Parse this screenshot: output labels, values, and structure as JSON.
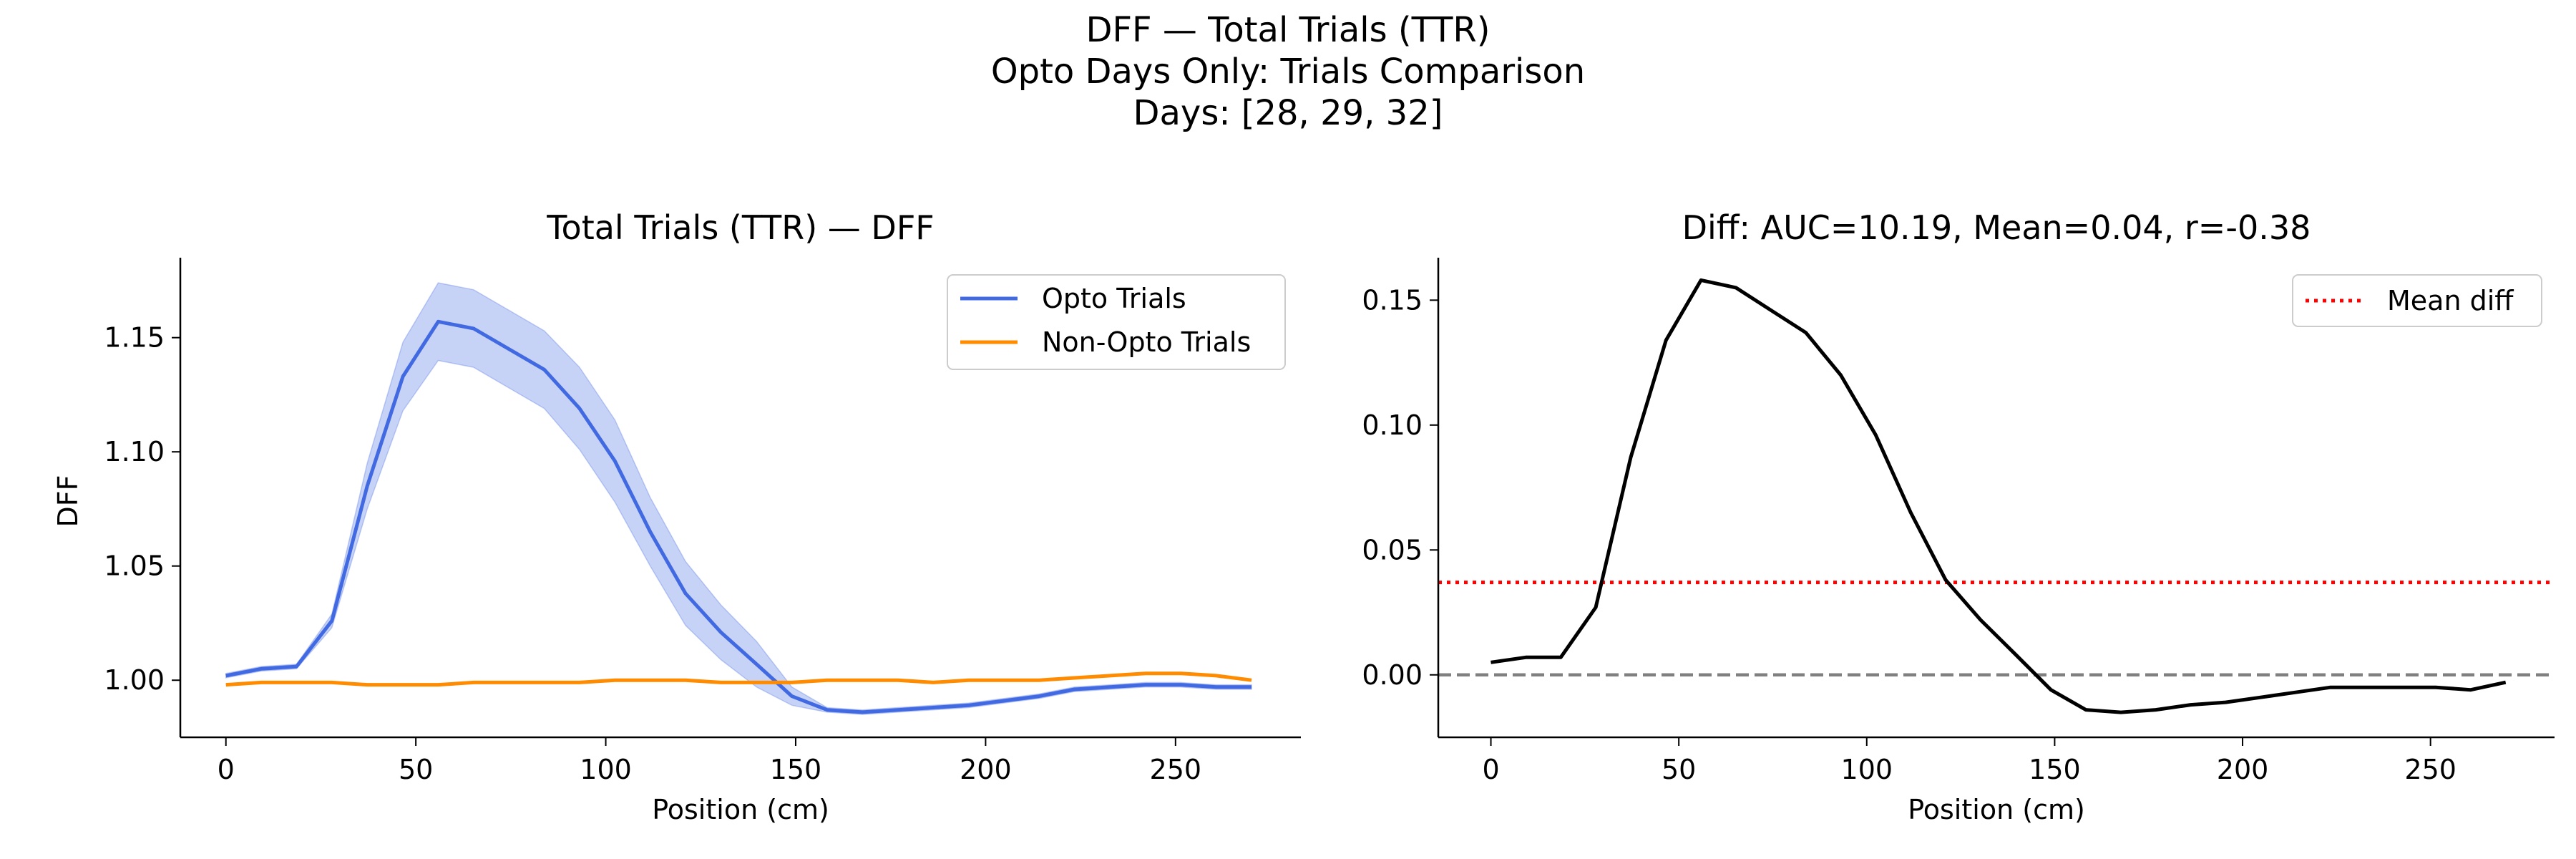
{
  "figure": {
    "suptitle_lines": [
      "DFF — Total Trials (TTR)",
      "Opto Days Only: Trials Comparison",
      "Days: [28, 29, 32]"
    ]
  },
  "colors": {
    "opto": "#4169e1",
    "nonopto": "#ff8c00",
    "diff": "#000000",
    "mean_line": "#ff0000",
    "zero_line": "#808080",
    "band": "#4169e1"
  },
  "chart_data": [
    {
      "type": "line",
      "title": "Total Trials (TTR) — DFF",
      "xlabel": "Position (cm)",
      "ylabel": "DFF",
      "xlim": [
        -12,
        283
      ],
      "ylim": [
        0.975,
        1.185
      ],
      "xticks": [
        0,
        50,
        100,
        150,
        200,
        250
      ],
      "yticks": [
        1.0,
        1.05,
        1.1,
        1.15
      ],
      "ytick_labels": [
        "1.00",
        "1.05",
        "1.10",
        "1.15"
      ],
      "grid": false,
      "legend_position": "upper right",
      "x": [
        0,
        9.3,
        18.6,
        27.9,
        37.2,
        46.6,
        55.9,
        65.2,
        74.5,
        83.8,
        93.1,
        102.4,
        111.7,
        121.0,
        130.3,
        139.7,
        149.0,
        158.3,
        167.6,
        176.9,
        186.2,
        195.5,
        204.8,
        214.1,
        223.4,
        232.8,
        242.1,
        251.4,
        260.7,
        270.0
      ],
      "series": [
        {
          "name": "Opto Trials",
          "color": "#4169e1",
          "values": [
            1.002,
            1.005,
            1.006,
            1.026,
            1.085,
            1.133,
            1.157,
            1.154,
            1.145,
            1.136,
            1.119,
            1.096,
            1.065,
            1.038,
            1.021,
            1.007,
            0.993,
            0.987,
            0.986,
            0.987,
            0.988,
            0.989,
            0.991,
            0.993,
            0.996,
            0.997,
            0.998,
            0.998,
            0.997,
            0.997
          ],
          "band_lower": [
            1.001,
            1.004,
            1.005,
            1.023,
            1.075,
            1.118,
            1.14,
            1.137,
            1.128,
            1.119,
            1.101,
            1.078,
            1.05,
            1.024,
            1.009,
            0.997,
            0.989,
            0.986,
            0.985,
            0.986,
            0.987,
            0.988,
            0.99,
            0.992,
            0.995,
            0.996,
            0.997,
            0.997,
            0.996,
            0.996
          ],
          "band_upper": [
            1.003,
            1.006,
            1.007,
            1.029,
            1.095,
            1.148,
            1.174,
            1.171,
            1.162,
            1.153,
            1.137,
            1.114,
            1.08,
            1.052,
            1.033,
            1.017,
            0.997,
            0.988,
            0.987,
            0.988,
            0.989,
            0.99,
            0.992,
            0.994,
            0.997,
            0.998,
            0.999,
            0.999,
            0.998,
            0.998
          ]
        },
        {
          "name": "Non-Opto Trials",
          "color": "#ff8c00",
          "values": [
            0.998,
            0.999,
            0.999,
            0.999,
            0.998,
            0.998,
            0.998,
            0.999,
            0.999,
            0.999,
            0.999,
            1.0,
            1.0,
            1.0,
            0.999,
            0.999,
            0.999,
            1.0,
            1.0,
            1.0,
            0.999,
            1.0,
            1.0,
            1.0,
            1.001,
            1.002,
            1.003,
            1.003,
            1.002,
            1.0
          ]
        }
      ]
    },
    {
      "type": "line",
      "title": "Diff: AUC=10.19, Mean=0.04, r=-0.38",
      "xlabel": "Position (cm)",
      "ylabel": "",
      "xlim": [
        -14,
        283
      ],
      "ylim": [
        -0.025,
        0.167
      ],
      "xticks": [
        0,
        50,
        100,
        150,
        200,
        250
      ],
      "yticks": [
        0.0,
        0.05,
        0.1,
        0.15
      ],
      "ytick_labels": [
        "0.00",
        "0.05",
        "0.10",
        "0.15"
      ],
      "grid": false,
      "legend_position": "upper right",
      "mean_line": {
        "value": 0.037,
        "label": "Mean diff",
        "color": "#ff0000"
      },
      "zero_line": {
        "value": 0,
        "color": "#808080"
      },
      "x": [
        0,
        9.3,
        18.6,
        27.9,
        37.2,
        46.6,
        55.9,
        65.2,
        74.5,
        83.8,
        93.1,
        102.4,
        111.7,
        121.0,
        130.3,
        139.7,
        149.0,
        158.3,
        167.6,
        176.9,
        186.2,
        195.5,
        204.8,
        214.1,
        223.4,
        232.8,
        242.1,
        251.4,
        260.7,
        270.0
      ],
      "series": [
        {
          "name": "",
          "color": "#000000",
          "values": [
            0.005,
            0.007,
            0.007,
            0.027,
            0.087,
            0.134,
            0.158,
            0.155,
            0.146,
            0.137,
            0.12,
            0.096,
            0.065,
            0.038,
            0.022,
            0.008,
            -0.006,
            -0.014,
            -0.015,
            -0.014,
            -0.012,
            -0.011,
            -0.009,
            -0.007,
            -0.005,
            -0.005,
            -0.005,
            -0.005,
            -0.006,
            -0.003
          ]
        }
      ]
    }
  ]
}
